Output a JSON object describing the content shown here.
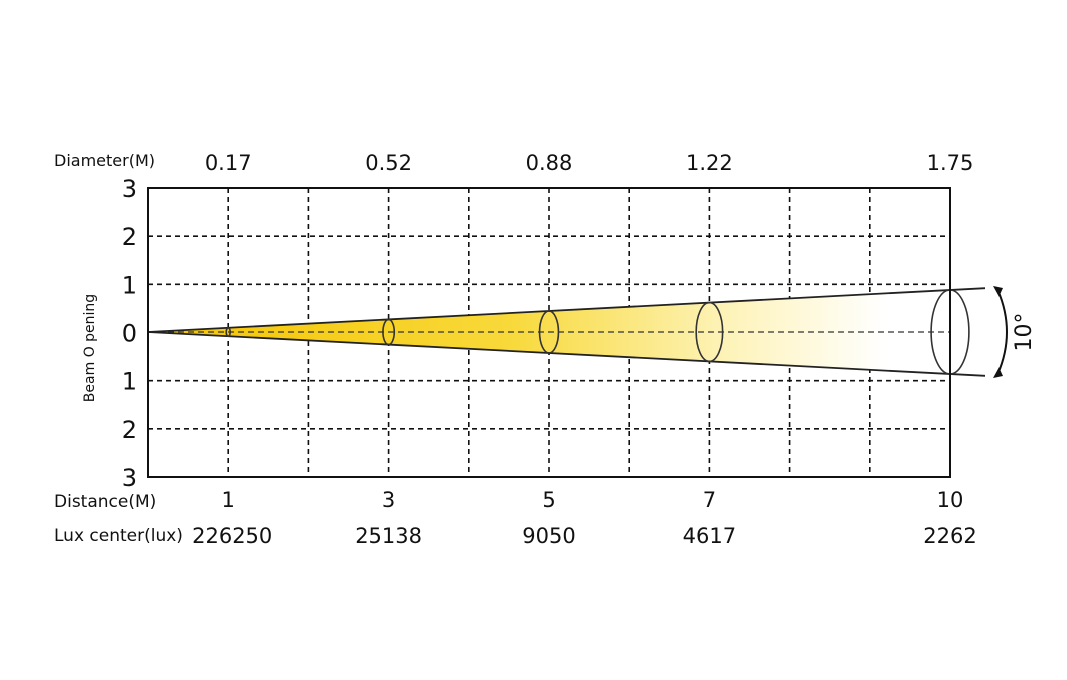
{
  "diagram": {
    "diameter_label": "Diameter(M)",
    "distance_label": "Distance(M)",
    "lux_label": "Lux center(lux)",
    "y_axis_label": "Beam O pening",
    "y_ticks": [
      "3",
      "2",
      "1",
      "0",
      "1",
      "2",
      "3"
    ],
    "beam_angle_label": "10°",
    "beam_color": "#f5c400",
    "points": [
      {
        "distance": 1,
        "distance_label": "1",
        "diameter": "0.17",
        "lux": "226250"
      },
      {
        "distance": 3,
        "distance_label": "3",
        "diameter": "0.52",
        "lux": "25138"
      },
      {
        "distance": 5,
        "distance_label": "5",
        "diameter": "0.88",
        "lux": "9050"
      },
      {
        "distance": 7,
        "distance_label": "7",
        "diameter": "1.22",
        "lux": "4617"
      },
      {
        "distance": 10,
        "distance_label": "10",
        "diameter": "1.75",
        "lux": "2262"
      }
    ],
    "grid_columns": 10
  }
}
